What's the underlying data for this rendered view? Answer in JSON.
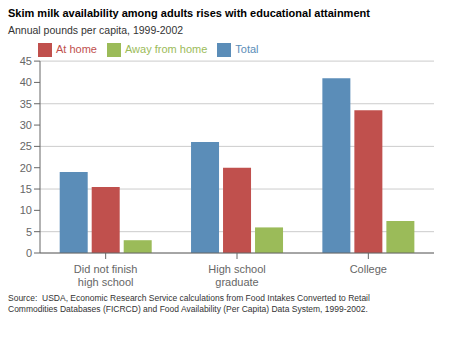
{
  "chart_data": {
    "type": "bar",
    "title": "Skim milk availability among adults rises with educational attainment",
    "subtitle": "Annual pounds per capita, 1999-2002",
    "annotations": [
      "Source:  USDA, Economic Research Service calculations from Food Intakes Converted to Retail\nCommodities Databases (FICRCD) and Food Availability (Per Capita) Data System, 1999-2002."
    ],
    "categories": [
      "Did not finish\nhigh school",
      "High school\ngraduate",
      "College"
    ],
    "series": [
      {
        "name": "Total",
        "color": "#5b8db8",
        "values": [
          19,
          26,
          41
        ]
      },
      {
        "name": "At home",
        "color": "#c0504d",
        "values": [
          15.5,
          20,
          33.5
        ]
      },
      {
        "name": "Away from home",
        "color": "#9bbb59",
        "values": [
          3,
          6,
          7.5
        ]
      }
    ],
    "ylim": [
      0,
      45
    ],
    "yticks": [
      0,
      5,
      10,
      15,
      20,
      25,
      30,
      35,
      40,
      45
    ],
    "grid": true,
    "legend": "upper left"
  }
}
